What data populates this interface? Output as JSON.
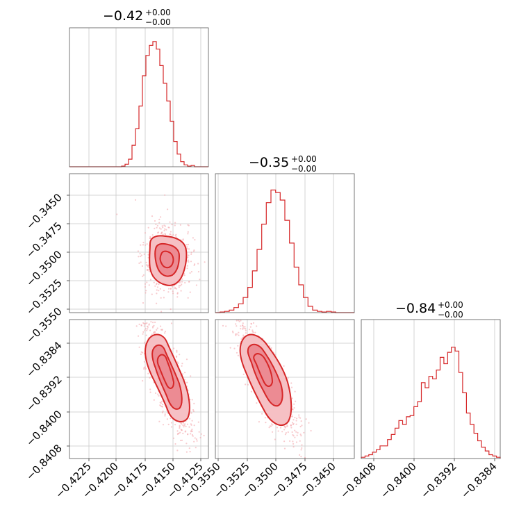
{
  "colors": {
    "accent": "#d62728",
    "grid": "#c8c8c8",
    "points": "#f3a0a6"
  },
  "chart_data": {
    "type": "corner",
    "parameters": [
      {
        "title": {
          "main": "−0.42",
          "sup": "+0.00",
          "sub": "−0.00"
        },
        "ticks": [
          -0.4225,
          -0.42,
          -0.4175,
          -0.415,
          -0.4125
        ],
        "tick_labels": [
          "−0.4225",
          "−0.4200",
          "−0.4175",
          "−0.4150",
          "−0.4125"
        ],
        "range": [
          -0.4245,
          -0.4117
        ],
        "hist": [
          0,
          0,
          0,
          0,
          0,
          0,
          0,
          0,
          0,
          0,
          0,
          0,
          0,
          0,
          0,
          0.005,
          0.02,
          0.06,
          0.17,
          0.3,
          0.48,
          0.72,
          0.88,
          0.96,
          0.99,
          0.93,
          0.8,
          0.66,
          0.52,
          0.36,
          0.2,
          0.1,
          0.04,
          0.015,
          0.005,
          0.01,
          0,
          0,
          0,
          0
        ]
      },
      {
        "title": {
          "main": "−0.35",
          "sup": "+0.00",
          "sub": "−0.00"
        },
        "ticks": [
          -0.355,
          -0.3525,
          -0.35,
          -0.3475,
          -0.345
        ],
        "tick_labels": [
          "−0.3550",
          "−0.3525",
          "−0.3500",
          "−0.3475",
          "−0.3450"
        ],
        "range": [
          -0.3555,
          -0.3432
        ],
        "hist": [
          0,
          0.005,
          0.01,
          0.02,
          0.04,
          0.07,
          0.12,
          0.2,
          0.33,
          0.5,
          0.7,
          0.87,
          0.97,
          0.95,
          0.89,
          0.73,
          0.55,
          0.36,
          0.22,
          0.12,
          0.05,
          0.02,
          0.01,
          0.005,
          0.01,
          0.005,
          0,
          0,
          0,
          0
        ]
      },
      {
        "title": {
          "main": "−0.84",
          "sup": "+0.00",
          "sub": "−0.00"
        },
        "ticks": [
          -0.8408,
          -0.84,
          -0.8392,
          -0.8384
        ],
        "tick_labels": [
          "−0.8408",
          "−0.8400",
          "−0.8392",
          "−0.8384"
        ],
        "range": [
          -0.84105,
          -0.83828
        ],
        "hist": [
          0.01,
          0.02,
          0.03,
          0.05,
          0.07,
          0.1,
          0.1,
          0.15,
          0.19,
          0.24,
          0.3,
          0.27,
          0.33,
          0.34,
          0.41,
          0.45,
          0.6,
          0.56,
          0.65,
          0.63,
          0.7,
          0.8,
          0.75,
          0.84,
          0.88,
          0.85,
          0.68,
          0.52,
          0.36,
          0.27,
          0.2,
          0.14,
          0.09,
          0.06,
          0.03,
          0.02,
          0.01
        ]
      }
    ],
    "ylabels_row2": [
      "−0.3450",
      "−0.3475",
      "−0.3500",
      "−0.3525",
      "−0.3550"
    ],
    "ylabels_row3": [
      "−0.8384",
      "−0.8392",
      "−0.8400",
      "−0.8408"
    ]
  }
}
